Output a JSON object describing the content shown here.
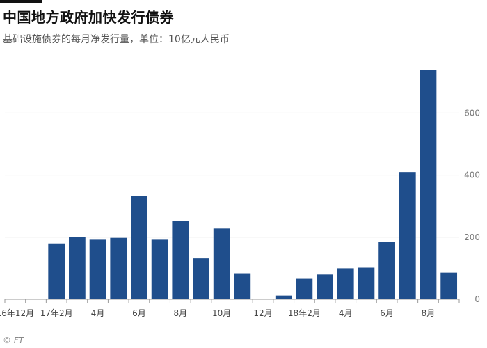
{
  "header": {
    "title": "中国地方政府加快发行债券",
    "subtitle": "基础设施债券的每月净发行量，单位：10亿元人民币"
  },
  "source": "© FT",
  "colors": {
    "bar": "#1f4e8c",
    "grid": "#e3e3e3",
    "axis": "#999999"
  },
  "chart_data": {
    "type": "bar",
    "categories": [
      "16年12月",
      "17年1月",
      "17年2月",
      "17年3月",
      "17年4月",
      "17年5月",
      "17年6月",
      "17年7月",
      "17年8月",
      "17年9月",
      "17年10月",
      "17年11月",
      "17年12月",
      "18年1月",
      "18年2月",
      "18年3月",
      "18年4月",
      "18年5月",
      "18年6月",
      "18年7月",
      "18年8月",
      "18年9月"
    ],
    "values": [
      0,
      0,
      180,
      200,
      192,
      198,
      333,
      192,
      252,
      132,
      228,
      84,
      0,
      12,
      66,
      80,
      100,
      102,
      186,
      410,
      740,
      86
    ],
    "tick_labels": [
      {
        "index": 0,
        "label": "16年12月"
      },
      {
        "index": 2,
        "label": "17年2月"
      },
      {
        "index": 4,
        "label": "4月"
      },
      {
        "index": 6,
        "label": "6月"
      },
      {
        "index": 8,
        "label": "8月"
      },
      {
        "index": 10,
        "label": "10月"
      },
      {
        "index": 12,
        "label": "12月"
      },
      {
        "index": 14,
        "label": "18年2月"
      },
      {
        "index": 16,
        "label": "4月"
      },
      {
        "index": 18,
        "label": "6月"
      },
      {
        "index": 20,
        "label": "8月"
      }
    ],
    "yticks": [
      0,
      200,
      400,
      600
    ],
    "ylim": [
      0,
      740
    ],
    "y_axis_position": "right",
    "grid": true
  }
}
